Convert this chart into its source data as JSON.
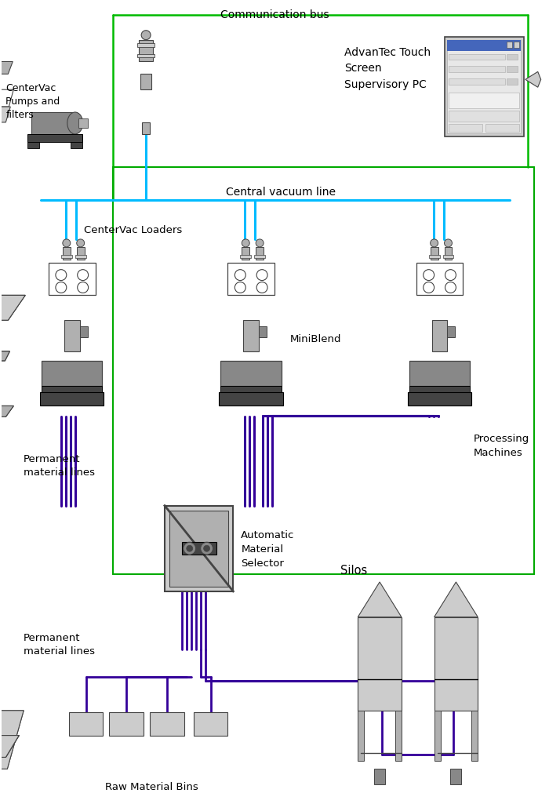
{
  "bg_color": "#ffffff",
  "comm_bus_color": "#00bb00",
  "vacuum_line_color": "#00bbff",
  "material_line_color": "#330099",
  "green_border_color": "#00aa00",
  "dark_gray": "#444444",
  "light_gray": "#cccccc",
  "medium_gray": "#888888",
  "silver": "#b0b0b0",
  "text_color": "#000000",
  "labels": {
    "comm_bus": "Communication bus",
    "vacuum_line": "Central vacuum line",
    "centervac_pumps": "CenterVac\nPumps and\nfilters",
    "advantec": "AdvanTec Touch\nScreen\nSupervisory PC",
    "centervac_loaders": "CenterVac Loaders",
    "miniblend": "MiniBlend",
    "processing_machines": "Processing\nMachines",
    "perm_material_upper": "Permanent\nmaterial lines",
    "auto_selector": "Automatic\nMaterial\nSelector",
    "silos": "Silos",
    "perm_material_lower": "Permanent\nmaterial lines",
    "raw_material_bins": "Raw Material Bins"
  },
  "figsize": [
    7.0,
    10.12
  ],
  "dpi": 100
}
